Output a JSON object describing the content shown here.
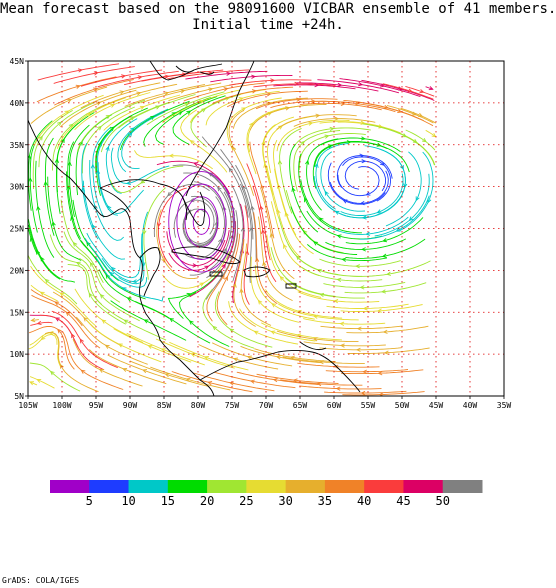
{
  "title_line1": "Mean forecast based on the 98091600 VICBAR ensemble of 41 members.",
  "title_line2": "Initial time +24h.",
  "footer": "GrADS: COLA/IGES",
  "map": {
    "lon_range": [
      -105,
      -35
    ],
    "lat_range": [
      5,
      45
    ],
    "x_tick_labels": [
      "105W",
      "100W",
      "95W",
      "90W",
      "85W",
      "80W",
      "75W",
      "70W",
      "65W",
      "60W",
      "55W",
      "50W",
      "45W",
      "40W",
      "35W"
    ],
    "y_tick_labels": [
      "5N",
      "10N",
      "15N",
      "20N",
      "25N",
      "30N",
      "35N",
      "40N",
      "45N"
    ],
    "grid": true,
    "data_lon_max": -45,
    "cyclone_center": {
      "lon": -79.5,
      "lat": 25.8
    },
    "wind_speed_units_note": ""
  },
  "colorbar": {
    "labels": [
      "5",
      "10",
      "15",
      "20",
      "25",
      "30",
      "35",
      "40",
      "45",
      "50"
    ],
    "colors": [
      "#a000c8",
      "#1e3cff",
      "#00c8c8",
      "#00dc00",
      "#a0e632",
      "#e6dc32",
      "#e6af2d",
      "#f08228",
      "#fa3c3c",
      "#dc0064",
      "#808080"
    ]
  }
}
